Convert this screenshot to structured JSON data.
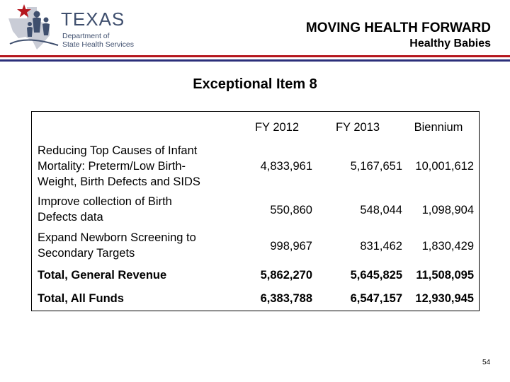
{
  "header": {
    "logo_text": "TEXAS",
    "logo_sub_lines": [
      "Department of",
      "State Health Services"
    ],
    "title": "MOVING HEALTH FORWARD",
    "subtitle": "Healthy Babies"
  },
  "colors": {
    "red_rule": "#b5161e",
    "blue_rule": "#2b2f7a",
    "logo": "#3f4f6e"
  },
  "page_title": "Exceptional Item 8",
  "table": {
    "columns": [
      "FY 2012",
      "FY 2013",
      "Biennium"
    ],
    "rows": [
      {
        "label_lines": [
          "Reducing Top Causes of Infant",
          "Mortality: Preterm/Low Birth-",
          "Weight, Birth Defects and SIDS"
        ],
        "values": [
          "4,833,961",
          "5,167,651",
          "10,001,612"
        ]
      },
      {
        "label_lines": [
          "Improve collection of Birth",
          "Defects data"
        ],
        "values": [
          "550,860",
          "548,044",
          "1,098,904"
        ]
      },
      {
        "label_lines": [
          "Expand Newborn Screening to",
          "Secondary Targets"
        ],
        "values": [
          "998,967",
          "831,462",
          "1,830,429"
        ]
      },
      {
        "label_lines": [
          "Total, General Revenue"
        ],
        "values": [
          "5,862,270",
          "5,645,825",
          "11,508,095"
        ]
      },
      {
        "label_lines": [
          "Total, All Funds"
        ],
        "values": [
          "6,383,788",
          "6,547,157",
          "12,930,945"
        ]
      }
    ]
  },
  "page_number": "54"
}
